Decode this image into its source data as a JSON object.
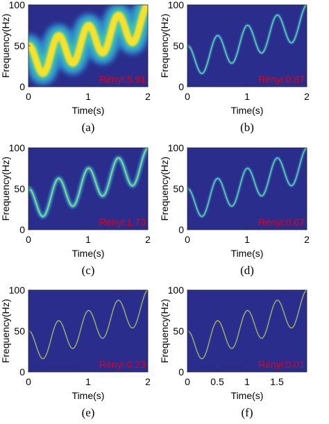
{
  "colors": {
    "background": "#2b2d8c",
    "ridge_core": "#f7e12a",
    "ridge_mid": "#3fc9b0",
    "ridge_outer": "#2d8fd6",
    "label_red": "#e3001b"
  },
  "chart_data": [
    {
      "type": "heatmap",
      "caption": "(a)",
      "xlabel": "Time(s)",
      "ylabel": "Frequency(Hz)",
      "xlim": [
        0,
        2
      ],
      "ylim": [
        0,
        100
      ],
      "xticks": [
        0,
        1,
        2
      ],
      "xtick_labels": [
        "0",
        "1",
        "2"
      ],
      "yticks": [
        0,
        50,
        100
      ],
      "ytick_labels": [
        "0",
        "50",
        "100"
      ],
      "annotation": "Rényi:5.91",
      "ridge": {
        "amplitude_hz": 20,
        "center_start_hz": 30,
        "center_slope_hz_per_s": 25,
        "frequency_hz": 2,
        "phase_rad": 1.5708,
        "spread": "wide"
      }
    },
    {
      "type": "heatmap",
      "caption": "(b)",
      "xlabel": "Time(s)",
      "ylabel": "Frequency(Hz)",
      "xlim": [
        0,
        2
      ],
      "ylim": [
        0,
        100
      ],
      "xticks": [
        0,
        1,
        2
      ],
      "xtick_labels": [
        "0",
        "1",
        "2"
      ],
      "yticks": [
        0,
        50,
        100
      ],
      "ytick_labels": [
        "0",
        "50",
        "100"
      ],
      "annotation": "Rényi:0.87",
      "ridge": {
        "amplitude_hz": 20,
        "center_start_hz": 30,
        "center_slope_hz_per_s": 25,
        "frequency_hz": 2,
        "phase_rad": 1.5708,
        "spread": "thin"
      }
    },
    {
      "type": "heatmap",
      "caption": "(c)",
      "xlabel": "Time(s)",
      "ylabel": "Frequency(Hz)",
      "xlim": [
        0,
        2
      ],
      "ylim": [
        0,
        100
      ],
      "xticks": [
        0,
        1,
        2
      ],
      "xtick_labels": [
        "0",
        "1",
        "2"
      ],
      "yticks": [
        0,
        50,
        100
      ],
      "ytick_labels": [
        "0",
        "50",
        "100"
      ],
      "annotation": "Rényi:1.73",
      "ridge": {
        "amplitude_hz": 20,
        "center_start_hz": 30,
        "center_slope_hz_per_s": 25,
        "frequency_hz": 2,
        "phase_rad": 1.5708,
        "spread": "medium"
      }
    },
    {
      "type": "heatmap",
      "caption": "(d)",
      "xlabel": "Time(s)",
      "ylabel": "Frequency(Hz)",
      "xlim": [
        0,
        2
      ],
      "ylim": [
        0,
        100
      ],
      "xticks": [
        0,
        1,
        2
      ],
      "xtick_labels": [
        "0",
        "1",
        "2"
      ],
      "yticks": [
        0,
        50,
        100
      ],
      "ytick_labels": [
        "0",
        "50",
        "100"
      ],
      "annotation": "Rényi:0.67",
      "ridge": {
        "amplitude_hz": 20,
        "center_start_hz": 30,
        "center_slope_hz_per_s": 25,
        "frequency_hz": 2,
        "phase_rad": 1.5708,
        "spread": "thin"
      }
    },
    {
      "type": "heatmap",
      "caption": "(e)",
      "xlabel": "Time(s)",
      "ylabel": "Frequency(Hz)",
      "xlim": [
        0,
        2
      ],
      "ylim": [
        0,
        100
      ],
      "xticks": [
        0,
        1,
        2
      ],
      "xtick_labels": [
        "0",
        "1",
        "2"
      ],
      "yticks": [
        0,
        50,
        100
      ],
      "ytick_labels": [
        "0",
        "50",
        "100"
      ],
      "annotation": "Rényi:0.23",
      "ridge": {
        "amplitude_hz": 20,
        "center_start_hz": 30,
        "center_slope_hz_per_s": 25,
        "frequency_hz": 2,
        "phase_rad": 1.5708,
        "spread": "hairline"
      }
    },
    {
      "type": "heatmap",
      "caption": "(f)",
      "xlabel": "Time(s)",
      "ylabel": "Frequency(Hz)",
      "xlim": [
        0,
        2
      ],
      "ylim": [
        0,
        100
      ],
      "xticks": [
        0,
        0.5,
        1,
        1.5
      ],
      "xtick_labels": [
        "0",
        "0.5",
        "1",
        "1.5"
      ],
      "yticks": [
        0,
        50,
        100
      ],
      "ytick_labels": [
        "0",
        "50",
        "100"
      ],
      "annotation": "Rényi:0.01",
      "ridge": {
        "amplitude_hz": 20,
        "center_start_hz": 30,
        "center_slope_hz_per_s": 25,
        "frequency_hz": 2,
        "phase_rad": 1.5708,
        "spread": "hairline"
      }
    }
  ]
}
